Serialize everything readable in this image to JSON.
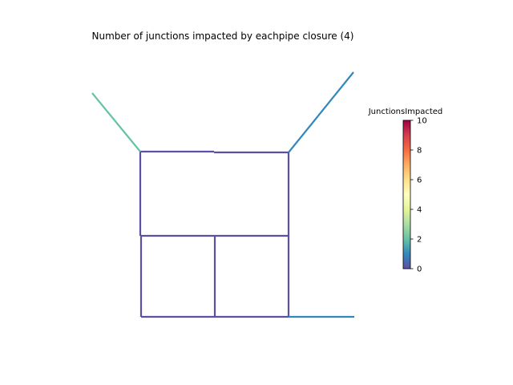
{
  "title": "Number of junctions impacted by eachpipe closure (4)",
  "colorbar": {
    "label": "JunctionsImpacted",
    "min": 0,
    "max": 10,
    "colormap": "Spectral_r",
    "stops": [
      "#5e4fa2",
      "#3288bd",
      "#66c2a5",
      "#abdda4",
      "#e6f598",
      "#ffffbf",
      "#fee08b",
      "#fdae61",
      "#f46d43",
      "#d53e4f",
      "#9e0142"
    ],
    "ticks": [
      "0",
      "2",
      "4",
      "6",
      "8",
      "10"
    ]
  },
  "network": {
    "pipes": [
      {
        "name": "pipe-top-left-h",
        "from": [
          175,
          189
        ],
        "to": [
          267,
          189
        ],
        "impacted": 0,
        "color": "#5e4fa2"
      },
      {
        "name": "pipe-top-right-h",
        "from": [
          267,
          190
        ],
        "to": [
          360,
          190
        ],
        "impacted": 0,
        "color": "#5e4fa2"
      },
      {
        "name": "pipe-left-upper-v",
        "from": [
          175,
          189
        ],
        "to": [
          175,
          294
        ],
        "impacted": 0,
        "color": "#5e4fa2"
      },
      {
        "name": "pipe-right-upper-v",
        "from": [
          360,
          190
        ],
        "to": [
          360,
          294
        ],
        "impacted": 0,
        "color": "#5e4fa2"
      },
      {
        "name": "pipe-middle-h",
        "from": [
          175,
          294
        ],
        "to": [
          360,
          294
        ],
        "impacted": 0,
        "color": "#5e4fa2"
      },
      {
        "name": "pipe-left-lower-v",
        "from": [
          176,
          294
        ],
        "to": [
          176,
          395
        ],
        "impacted": 0,
        "color": "#5e4fa2"
      },
      {
        "name": "pipe-center-lower-v",
        "from": [
          268,
          294
        ],
        "to": [
          268,
          395
        ],
        "impacted": 0,
        "color": "#5e4fa2"
      },
      {
        "name": "pipe-right-lower-v",
        "from": [
          360,
          294
        ],
        "to": [
          360,
          395
        ],
        "impacted": 0,
        "color": "#5e4fa2"
      },
      {
        "name": "pipe-bottom-h",
        "from": [
          176,
          395
        ],
        "to": [
          360,
          395
        ],
        "impacted": 0,
        "color": "#5e4fa2"
      },
      {
        "name": "pipe-top-left-branch",
        "from": [
          115,
          116
        ],
        "to": [
          175,
          189
        ],
        "impacted": 2,
        "color": "#66c2a5"
      },
      {
        "name": "pipe-top-right-branch",
        "from": [
          360,
          190
        ],
        "to": [
          441,
          90
        ],
        "impacted": 1,
        "color": "#3288bd"
      },
      {
        "name": "pipe-bottom-right-branch",
        "from": [
          360,
          395
        ],
        "to": [
          442,
          395
        ],
        "impacted": 1,
        "color": "#3288bd"
      }
    ]
  }
}
